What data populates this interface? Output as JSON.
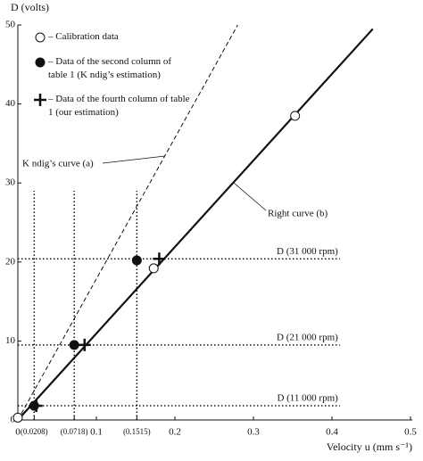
{
  "chart_data": {
    "type": "scatter",
    "y_label": "D (volts)",
    "x_label": "Velocity u (mm s⁻¹)",
    "xlim": [
      0,
      0.5
    ],
    "ylim": [
      0,
      50
    ],
    "xticks": [
      0,
      {
        "value": 0.0208,
        "label": "(0.0208)"
      },
      {
        "value": 0.0718,
        "label": "(0.0718)"
      },
      0.1,
      {
        "value": 0.1515,
        "label": "(0.1515)"
      },
      0.2,
      0.3,
      0.4,
      0.5
    ],
    "yticks": [
      0,
      10,
      20,
      30,
      40,
      50
    ],
    "series": [
      {
        "name": "– Calibration data",
        "marker": "open-circle",
        "color": "#111111",
        "x": [
          0.0,
          0.173,
          0.353
        ],
        "values": [
          0.3,
          19.2,
          38.5
        ]
      },
      {
        "name": "– Data of the second column of table 1 (K ndig’s estimation)",
        "marker": "filled-circle",
        "color": "#111111",
        "x": [
          0.0208,
          0.0718,
          0.1515
        ],
        "values": [
          1.8,
          9.5,
          20.2
        ]
      },
      {
        "name": "– Data of the fourth column of table 1 (our estimation)",
        "marker": "plus",
        "color": "#111111",
        "x": [
          0.0235,
          0.085,
          0.18
        ],
        "values": [
          1.8,
          9.5,
          20.4
        ]
      }
    ],
    "lines": [
      {
        "name": "K ndig’s curve (a)",
        "style": "dashed",
        "x": [
          0,
          0.28
        ],
        "values": [
          0,
          50
        ]
      },
      {
        "name": "Right curve (b)",
        "style": "solid",
        "x": [
          0,
          0.452
        ],
        "values": [
          0,
          49.5
        ]
      }
    ],
    "hlines": [
      {
        "value": 1.8,
        "to": 0.41,
        "label": "D (11 000 rpm)"
      },
      {
        "value": 9.5,
        "to": 0.41,
        "label": "D (21 000 rpm)"
      },
      {
        "value": 20.4,
        "to": 0.41,
        "label": "D (31 000 rpm)"
      }
    ],
    "vlines": [
      {
        "value": 0.0208,
        "to": 29
      },
      {
        "value": 0.0718,
        "to": 29
      },
      {
        "value": 0.1515,
        "to": 29
      }
    ]
  }
}
